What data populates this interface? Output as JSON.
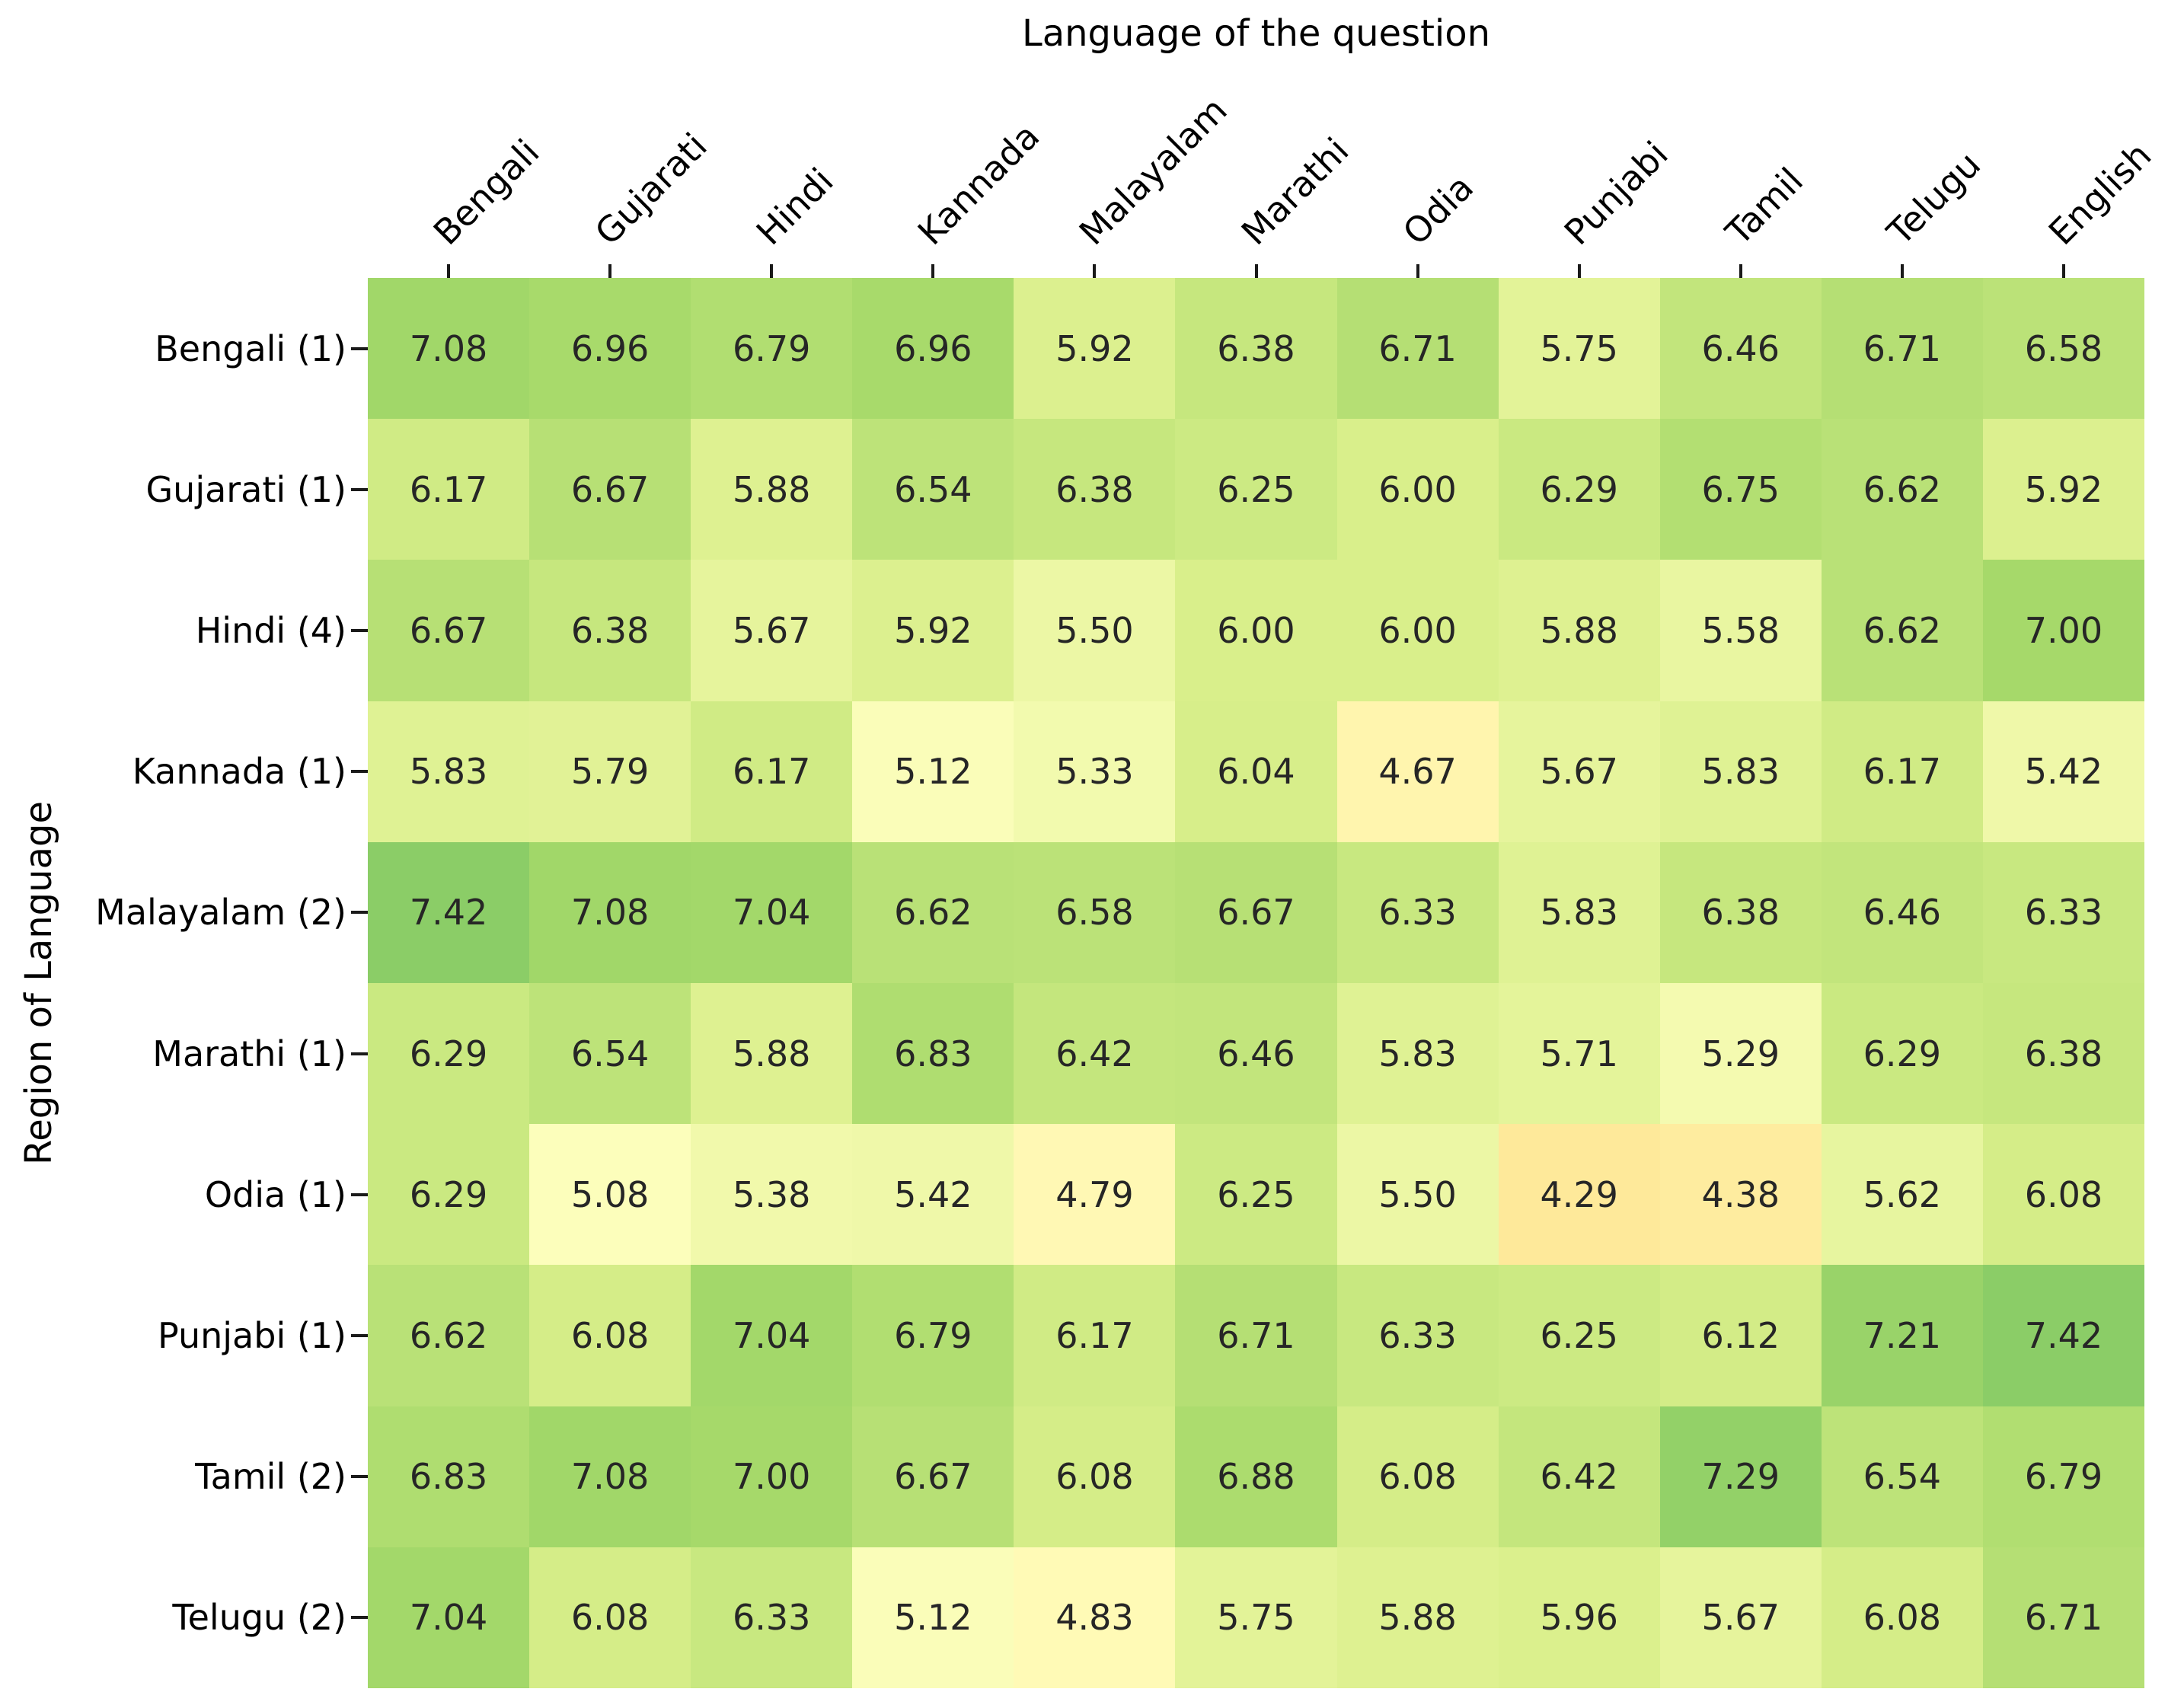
{
  "title": "Language of the question",
  "ylabel": "Region of Language",
  "chart_data": {
    "type": "heatmap",
    "title": "Language of the question",
    "xlabel": "Language of the question",
    "ylabel": "Region of Language",
    "xlabel_position": "top",
    "x_tick_rotation_deg": 45,
    "annotation_decimals": 2,
    "annotation_text_color": "#262626",
    "columns": [
      "Bengali",
      "Gujarati",
      "Hindi",
      "Kannada",
      "Malayalam",
      "Marathi",
      "Odia",
      "Punjabi",
      "Tamil",
      "Telugu",
      "English"
    ],
    "rows": [
      "Bengali (1)",
      "Gujarati (1)",
      "Hindi (4)",
      "Kannada (1)",
      "Malayalam (2)",
      "Marathi (1)",
      "Odia (1)",
      "Punjabi (1)",
      "Tamil (2)",
      "Telugu (2)"
    ],
    "values": [
      [
        7.08,
        6.96,
        6.79,
        6.96,
        5.92,
        6.38,
        6.71,
        5.75,
        6.46,
        6.71,
        6.58
      ],
      [
        6.17,
        6.67,
        5.88,
        6.54,
        6.38,
        6.25,
        6.0,
        6.29,
        6.75,
        6.62,
        5.92
      ],
      [
        6.67,
        6.38,
        5.67,
        5.92,
        5.5,
        6.0,
        6.0,
        5.88,
        5.58,
        6.62,
        7.0
      ],
      [
        5.83,
        5.79,
        6.17,
        5.12,
        5.33,
        6.04,
        4.67,
        5.67,
        5.83,
        6.17,
        5.42
      ],
      [
        7.42,
        7.08,
        7.04,
        6.62,
        6.58,
        6.67,
        6.33,
        5.83,
        6.38,
        6.46,
        6.33
      ],
      [
        6.29,
        6.54,
        5.88,
        6.83,
        6.42,
        6.46,
        5.83,
        5.71,
        5.29,
        6.29,
        6.38
      ],
      [
        6.29,
        5.08,
        5.38,
        5.42,
        4.79,
        6.25,
        5.5,
        4.29,
        4.38,
        5.62,
        6.08
      ],
      [
        6.62,
        6.08,
        7.04,
        6.79,
        6.17,
        6.71,
        6.33,
        6.25,
        6.12,
        7.21,
        7.42
      ],
      [
        6.83,
        7.08,
        7.0,
        6.67,
        6.08,
        6.88,
        6.08,
        6.42,
        7.29,
        6.54,
        6.79
      ],
      [
        7.04,
        6.08,
        6.33,
        5.12,
        4.83,
        5.75,
        5.88,
        5.96,
        5.67,
        6.08,
        6.71
      ]
    ],
    "colormap": {
      "name": "RdYlGn",
      "domain": [
        0,
        10
      ],
      "anchors": [
        "#a50026",
        "#d73027",
        "#f46d43",
        "#fdae61",
        "#fee08b",
        "#ffffbf",
        "#d9ef8b",
        "#a6d96a",
        "#66bd63",
        "#1a9850",
        "#006837"
      ]
    },
    "grid": false,
    "legend": "none",
    "value_min": 4.29,
    "value_max": 7.42
  }
}
